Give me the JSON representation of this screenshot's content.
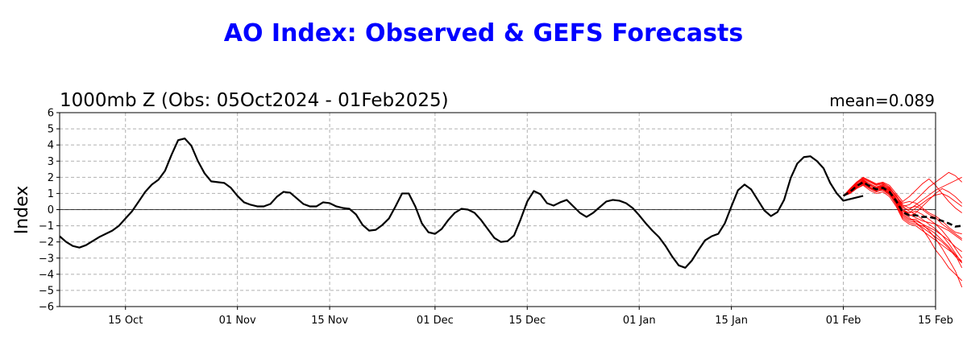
{
  "chart_data": {
    "type": "line",
    "title": "AO Index: Observed & GEFS Forecasts",
    "subtitle_left": "1000mb Z (Obs: 05Oct2024 - 01Feb2025)",
    "subtitle_right": "mean=0.089",
    "ylabel": "Index",
    "ylim": [
      -6,
      6
    ],
    "yticks": [
      -6,
      -5,
      -4,
      -3,
      -2,
      -1,
      0,
      1,
      2,
      3,
      4,
      5,
      6
    ],
    "xlim": [
      "2024-10-05",
      "2025-02-15"
    ],
    "xticks": [
      {
        "date": "2024-10-15",
        "label": "15 Oct"
      },
      {
        "date": "2024-11-01",
        "label": "01 Nov"
      },
      {
        "date": "2024-11-15",
        "label": "15 Nov"
      },
      {
        "date": "2024-12-01",
        "label": "01 Dec"
      },
      {
        "date": "2024-12-15",
        "label": "15 Dec"
      },
      {
        "date": "2025-01-01",
        "label": "01 Jan"
      },
      {
        "date": "2025-01-15",
        "label": "15 Jan"
      },
      {
        "date": "2025-02-01",
        "label": "01 Feb"
      },
      {
        "date": "2025-02-15",
        "label": "15 Feb"
      }
    ],
    "grid": true,
    "colors": {
      "title": "#0000ff",
      "observed": "#000000",
      "members": "#ff0000",
      "grid": "#b0b0b0"
    },
    "observed": {
      "start_date": "2024-10-05",
      "values": [
        -1.65,
        -2.0,
        -2.25,
        -2.35,
        -2.2,
        -1.95,
        -1.7,
        -1.5,
        -1.3,
        -1.0,
        -0.55,
        -0.1,
        0.5,
        1.1,
        1.55,
        1.85,
        2.4,
        3.4,
        4.3,
        4.4,
        3.95,
        3.0,
        2.25,
        1.75,
        1.7,
        1.65,
        1.35,
        0.85,
        0.45,
        0.3,
        0.2,
        0.2,
        0.35,
        0.8,
        1.1,
        1.05,
        0.7,
        0.35,
        0.2,
        0.2,
        0.45,
        0.4,
        0.2,
        0.1,
        0.05,
        -0.3,
        -0.95,
        -1.3,
        -1.25,
        -0.95,
        -0.55,
        0.2,
        1.0,
        1.0,
        0.2,
        -0.85,
        -1.4,
        -1.5,
        -1.2,
        -0.65,
        -0.2,
        0.05,
        0.0,
        -0.2,
        -0.65,
        -1.2,
        -1.75,
        -2.0,
        -1.95,
        -1.6,
        -0.6,
        0.5,
        1.15,
        0.95,
        0.4,
        0.25,
        0.45,
        0.6,
        0.2,
        -0.2,
        -0.45,
        -0.2,
        0.15,
        0.5,
        0.6,
        0.55,
        0.4,
        0.1,
        -0.35,
        -0.85,
        -1.3,
        -1.7,
        -2.25,
        -2.9,
        -3.45,
        -3.6,
        -3.15,
        -2.5,
        -1.9,
        -1.65,
        -1.5,
        -0.85,
        0.2,
        1.2,
        1.55,
        1.25,
        0.6,
        -0.05,
        -0.4,
        -0.15,
        0.6,
        1.95,
        2.85,
        3.25,
        3.3,
        3.0,
        2.55,
        1.65,
        1.0,
        0.55,
        0.65,
        0.75,
        0.85
      ]
    },
    "forecast_start_date": "2025-02-01",
    "ensemble_mean": [
      0.85,
      1.1,
      1.45,
      1.7,
      1.45,
      1.25,
      1.35,
      1.1,
      0.55,
      -0.15,
      -0.35,
      -0.35,
      -0.45,
      -0.45,
      -0.55,
      -0.7,
      -0.85,
      -1.05,
      -1.0
    ],
    "members": [
      [
        0.85,
        1.2,
        1.6,
        1.9,
        1.7,
        1.5,
        1.6,
        1.3,
        0.9,
        0.3,
        0.1,
        0.2,
        0.0,
        -0.3,
        -0.5,
        -0.9,
        -1.2,
        -1.5,
        -1.8
      ],
      [
        0.85,
        1.0,
        1.3,
        1.5,
        1.2,
        1.0,
        1.1,
        0.8,
        0.2,
        -0.6,
        -0.9,
        -1.0,
        -1.3,
        -1.6,
        -1.9,
        -2.2,
        -2.5,
        -2.8,
        -3.2
      ],
      [
        0.85,
        1.3,
        1.7,
        2.0,
        1.8,
        1.6,
        1.7,
        1.5,
        1.0,
        0.5,
        0.8,
        1.2,
        1.6,
        1.9,
        1.5,
        1.0,
        0.5,
        0.1,
        -0.2
      ],
      [
        0.85,
        1.1,
        1.5,
        1.8,
        1.5,
        1.3,
        1.2,
        0.9,
        0.4,
        -0.2,
        -0.5,
        -0.8,
        -1.2,
        -1.8,
        -2.5,
        -3.0,
        -3.6,
        -4.0,
        -4.4
      ],
      [
        0.85,
        1.05,
        1.4,
        1.6,
        1.4,
        1.2,
        1.4,
        1.2,
        0.7,
        0.1,
        0.0,
        0.3,
        0.6,
        0.9,
        1.2,
        1.4,
        1.6,
        1.8,
        2.0
      ],
      [
        0.85,
        1.15,
        1.5,
        1.7,
        1.3,
        1.1,
        1.3,
        1.0,
        0.5,
        -0.3,
        -0.6,
        -0.6,
        -0.9,
        -1.1,
        -1.3,
        -1.6,
        -1.9,
        -2.3,
        -2.6
      ],
      [
        0.85,
        1.0,
        1.35,
        1.65,
        1.55,
        1.3,
        1.45,
        1.2,
        0.6,
        0.0,
        -0.2,
        -0.1,
        -0.3,
        -0.6,
        -0.9,
        -1.3,
        -1.8,
        -2.4,
        -3.0
      ],
      [
        0.85,
        1.2,
        1.55,
        1.75,
        1.5,
        1.35,
        1.5,
        1.25,
        0.7,
        0.2,
        0.3,
        0.6,
        1.0,
        1.4,
        1.7,
        2.0,
        2.3,
        2.1,
        1.7
      ],
      [
        0.85,
        1.1,
        1.4,
        1.6,
        1.35,
        1.15,
        1.2,
        0.95,
        0.3,
        -0.5,
        -0.8,
        -0.9,
        -1.0,
        -1.2,
        -1.5,
        -1.9,
        -2.3,
        -2.8,
        -3.6
      ],
      [
        0.85,
        1.05,
        1.45,
        1.8,
        1.6,
        1.4,
        1.55,
        1.35,
        0.8,
        0.4,
        0.5,
        0.4,
        0.1,
        -0.2,
        -0.4,
        -0.7,
        -1.1,
        -1.4,
        -1.5
      ],
      [
        0.85,
        1.25,
        1.65,
        1.95,
        1.75,
        1.55,
        1.65,
        1.4,
        0.85,
        0.2,
        -0.1,
        -0.3,
        -0.6,
        -0.9,
        -1.2,
        -1.6,
        -2.1,
        -2.7,
        -3.3
      ],
      [
        0.85,
        1.1,
        1.5,
        1.7,
        1.4,
        1.2,
        1.35,
        1.1,
        0.5,
        -0.1,
        -0.4,
        -0.2,
        0.2,
        0.6,
        1.0,
        1.3,
        1.1,
        0.8,
        0.4
      ],
      [
        0.85,
        1.0,
        1.3,
        1.55,
        1.3,
        1.1,
        1.25,
        1.0,
        0.4,
        -0.4,
        -0.7,
        -0.8,
        -1.1,
        -1.4,
        -1.7,
        -2.0,
        -2.4,
        -2.9,
        -3.3
      ],
      [
        0.85,
        1.2,
        1.5,
        1.85,
        1.6,
        1.4,
        1.45,
        1.2,
        0.65,
        0.0,
        -0.3,
        -0.5,
        -0.7,
        -0.8,
        -0.9,
        -1.1,
        -1.3,
        -1.6,
        -1.9
      ],
      [
        0.85,
        1.15,
        1.55,
        1.75,
        1.5,
        1.3,
        1.4,
        1.15,
        0.6,
        -0.1,
        -0.2,
        0.1,
        0.4,
        0.7,
        0.9,
        1.0,
        0.8,
        0.5,
        0.2
      ],
      [
        0.85,
        1.05,
        1.4,
        1.65,
        1.4,
        1.25,
        1.3,
        1.05,
        0.45,
        -0.3,
        -0.6,
        -0.7,
        -0.9,
        -1.3,
        -1.8,
        -2.4,
        -3.1,
        -3.8,
        -4.8
      ]
    ]
  }
}
